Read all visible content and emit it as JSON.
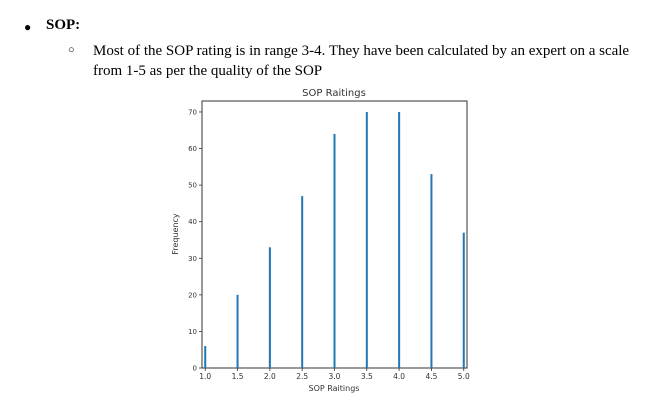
{
  "section": {
    "bullet": "●",
    "heading": "SOP:",
    "sub_bullet": "○",
    "paragraph": "Most of the SOP rating is in range 3-4. They have been calculated by an expert on a scale from 1-5 as per the quality of the SOP"
  },
  "chart_data": {
    "type": "bar",
    "title": "SOP Raitings",
    "xlabel": "SOP Raitings",
    "ylabel": "Frequency",
    "x": [
      1.0,
      1.5,
      2.0,
      2.5,
      3.0,
      3.5,
      4.0,
      4.5,
      5.0
    ],
    "values": [
      6,
      20,
      33,
      47,
      64,
      70,
      70,
      53,
      37
    ],
    "xlim": [
      0.95,
      5.05
    ],
    "ylim": [
      0,
      73
    ],
    "x_ticks": [
      "1.0",
      "1.5",
      "2.0",
      "2.5",
      "3.0",
      "3.5",
      "4.0",
      "4.5",
      "5.0"
    ],
    "y_ticks": [
      "0",
      "10",
      "20",
      "30",
      "40",
      "50",
      "60",
      "70"
    ],
    "bar_color": "#1f77b4",
    "grid": false
  }
}
